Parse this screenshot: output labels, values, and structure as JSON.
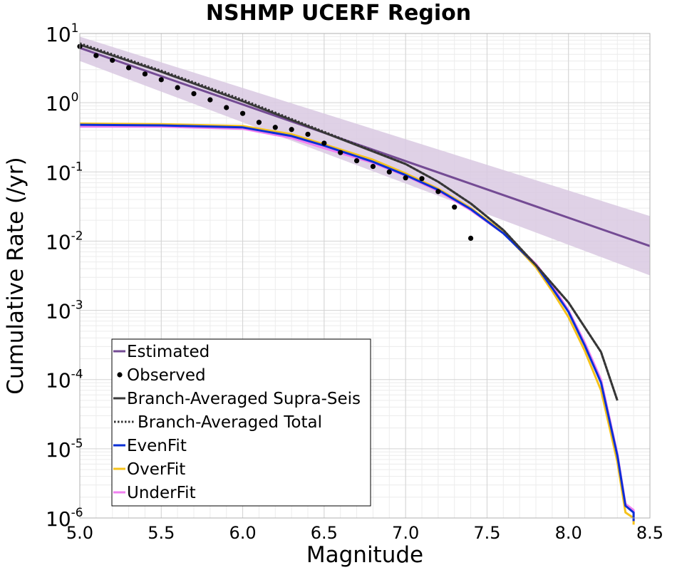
{
  "chart_data": {
    "type": "line",
    "title": "NSHMP UCERF Region",
    "xlabel": "Magnitude",
    "ylabel": "Cumulative Rate (/yr)",
    "xlim": [
      5.0,
      8.5
    ],
    "ylim": [
      1e-06,
      10
    ],
    "yscale": "log",
    "grid": true,
    "legend_position": "bottom-left",
    "x_ticks": [
      "5.0",
      "5.5",
      "6.0",
      "6.5",
      "7.0",
      "7.5",
      "8.0",
      "8.5"
    ],
    "y_ticks": [
      {
        "base": "10",
        "exp": "1"
      },
      {
        "base": "10",
        "exp": "0"
      },
      {
        "base": "10",
        "exp": "-1"
      },
      {
        "base": "10",
        "exp": "-2"
      },
      {
        "base": "10",
        "exp": "-3"
      },
      {
        "base": "10",
        "exp": "-4"
      },
      {
        "base": "10",
        "exp": "-5"
      },
      {
        "base": "10",
        "exp": "-6"
      }
    ],
    "estimated_band": {
      "x": [
        5.0,
        8.5
      ],
      "upper": [
        9.0,
        0.023
      ],
      "lower": [
        4.0,
        0.0032
      ]
    },
    "series": [
      {
        "name": "Estimated",
        "color": "#744b94",
        "style": "solid",
        "x": [
          5.0,
          8.5
        ],
        "y": [
          6.2,
          0.0085
        ]
      },
      {
        "name": "Observed",
        "color": "#000000",
        "style": "points",
        "x": [
          5.0,
          5.1,
          5.2,
          5.3,
          5.4,
          5.5,
          5.6,
          5.7,
          5.8,
          5.9,
          6.0,
          6.1,
          6.2,
          6.3,
          6.4,
          6.5,
          6.6,
          6.7,
          6.8,
          6.9,
          7.0,
          7.1,
          7.2,
          7.3,
          7.4
        ],
        "y": [
          6.5,
          4.8,
          4.1,
          3.2,
          2.6,
          2.15,
          1.65,
          1.35,
          1.1,
          0.85,
          0.7,
          0.52,
          0.44,
          0.41,
          0.35,
          0.26,
          0.19,
          0.145,
          0.12,
          0.1,
          0.082,
          0.08,
          0.052,
          0.031,
          0.011
        ]
      },
      {
        "name": "Branch-Averaged Supra-Seis",
        "color": "#3a3a3a",
        "style": "solid",
        "x": [
          5.0,
          5.5,
          6.0,
          6.5,
          7.0,
          7.2,
          7.4,
          7.6,
          7.8,
          8.0,
          8.2,
          8.3
        ],
        "y": [
          6.9,
          2.8,
          1.05,
          0.37,
          0.13,
          0.072,
          0.035,
          0.0145,
          0.0045,
          0.0013,
          0.00025,
          5e-05
        ]
      },
      {
        "name": "Branch-Averaged Total",
        "color": "#333333",
        "style": "dotted",
        "x": [
          5.0,
          5.5,
          6.0,
          6.5,
          7.0,
          7.2,
          7.4,
          7.6,
          7.8,
          8.0,
          8.2,
          8.3
        ],
        "y": [
          7.2,
          2.9,
          1.1,
          0.38,
          0.13,
          0.072,
          0.035,
          0.0145,
          0.0045,
          0.0013,
          0.00025,
          5e-05
        ]
      },
      {
        "name": "EvenFit",
        "color": "#0a2fd6",
        "style": "solid",
        "x": [
          5.0,
          5.5,
          6.0,
          6.3,
          6.5,
          6.8,
          7.0,
          7.2,
          7.4,
          7.6,
          7.8,
          7.9,
          8.0,
          8.1,
          8.2,
          8.3,
          8.35,
          8.4,
          8.4
        ],
        "y": [
          0.48,
          0.47,
          0.44,
          0.33,
          0.24,
          0.14,
          0.09,
          0.055,
          0.029,
          0.013,
          0.0045,
          0.0021,
          0.00095,
          0.00031,
          9e-05,
          8e-06,
          1.5e-06,
          1.2e-06,
          9e-07
        ]
      },
      {
        "name": "OverFit",
        "color": "#f5c21b",
        "style": "solid",
        "x": [
          5.0,
          5.5,
          6.0,
          6.3,
          6.5,
          6.8,
          7.0,
          7.2,
          7.4,
          7.6,
          7.8,
          7.9,
          8.0,
          8.1,
          8.2,
          8.3,
          8.35,
          8.4,
          8.4
        ],
        "y": [
          0.5,
          0.49,
          0.46,
          0.35,
          0.25,
          0.15,
          0.095,
          0.057,
          0.03,
          0.0135,
          0.0042,
          0.0019,
          0.0008,
          0.00026,
          7e-05,
          6.5e-06,
          1.2e-06,
          1e-06,
          8e-07
        ]
      },
      {
        "name": "UnderFit",
        "color": "#f07ff0",
        "style": "solid",
        "x": [
          5.0,
          5.5,
          6.0,
          6.3,
          6.5,
          6.8,
          7.0,
          7.2,
          7.4,
          7.6,
          7.8,
          7.9,
          8.0,
          8.1,
          8.2,
          8.3,
          8.35,
          8.4,
          8.4
        ],
        "y": [
          0.45,
          0.45,
          0.42,
          0.31,
          0.22,
          0.135,
          0.088,
          0.053,
          0.028,
          0.013,
          0.0047,
          0.0023,
          0.001,
          0.00034,
          0.0001,
          8.5e-06,
          1.6e-06,
          1.3e-06,
          9e-07
        ]
      }
    ],
    "legend": [
      {
        "label": "Estimated",
        "kind": "line",
        "color": "#744b94"
      },
      {
        "label": "Observed",
        "kind": "dot",
        "color": "#000000"
      },
      {
        "label": "Branch-Averaged Supra-Seis",
        "kind": "line",
        "color": "#3a3a3a"
      },
      {
        "label": "Branch-Averaged Total",
        "kind": "dotted",
        "color": "#333333"
      },
      {
        "label": "EvenFit",
        "kind": "line",
        "color": "#0a2fd6"
      },
      {
        "label": "OverFit",
        "kind": "line",
        "color": "#f5c21b"
      },
      {
        "label": "UnderFit",
        "kind": "line",
        "color": "#f07ff0"
      }
    ],
    "colors": {
      "band_fill": "#d9c9e2",
      "grid_major": "#d3d3d3",
      "grid_minor": "#ececec",
      "axes_frame": "#b0b0b0"
    }
  }
}
